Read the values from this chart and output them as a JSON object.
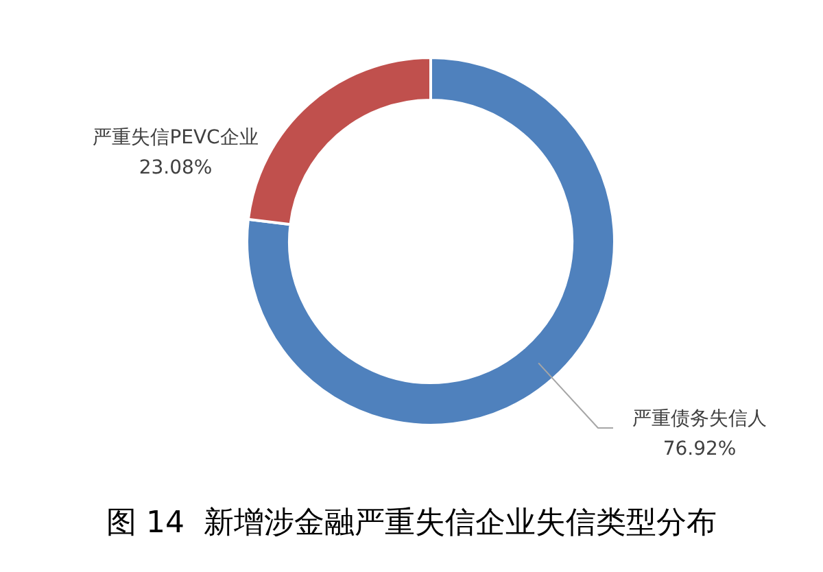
{
  "chart_data": {
    "type": "donut",
    "title": "图 14  新增涉金融严重失信企业失信类型分布",
    "categories": [
      "严重债务失信人",
      "严重失信PEVC企业"
    ],
    "values": [
      76.92,
      23.08
    ],
    "colors": [
      "#4f81bd",
      "#c0504d"
    ],
    "value_labels": [
      "76.92%",
      "23.08%"
    ]
  }
}
